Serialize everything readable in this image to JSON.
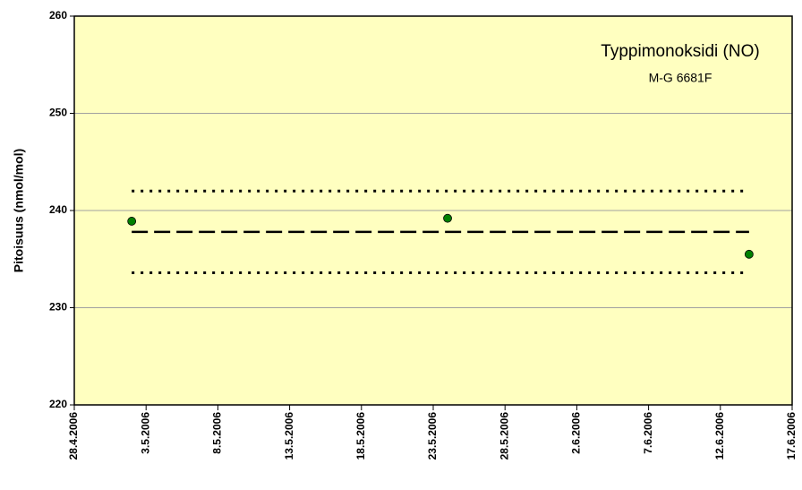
{
  "chart_data": {
    "type": "scatter",
    "title": "Typpimonoksidi (NO)",
    "subtitle": "M-G 6681F",
    "y_label": "Pitoisuus (nmol/mol)",
    "xlim": [
      "28.4.2006",
      "17.6.2006"
    ],
    "xticks": [
      "28.4.2006",
      "3.5.2006",
      "8.5.2006",
      "13.5.2006",
      "18.5.2006",
      "23.5.2006",
      "28.5.2006",
      "2.6.2006",
      "7.6.2006",
      "12.6.2006",
      "17.6.2006"
    ],
    "ylim": [
      220,
      260
    ],
    "yticks": [
      220,
      230,
      240,
      250,
      260
    ],
    "grid": true,
    "background": "#ffffc0",
    "series": [
      {
        "style": "points",
        "color": "#008000",
        "x": [
          "2.5.2006",
          "24.5.2006",
          "14.6.2006"
        ],
        "values": [
          238.9,
          239.2,
          235.5
        ]
      },
      {
        "style": "dashed",
        "color": "#000000",
        "x": [
          "2.5.2006",
          "14.6.2006"
        ],
        "values": [
          237.8,
          237.8
        ]
      },
      {
        "style": "dotted",
        "color": "#000000",
        "x": [
          "2.5.2006",
          "14.6.2006"
        ],
        "values": [
          242.0,
          242.0
        ]
      },
      {
        "style": "dotted",
        "color": "#000000",
        "x": [
          "2.5.2006",
          "14.6.2006"
        ],
        "values": [
          233.6,
          233.6
        ]
      }
    ]
  }
}
